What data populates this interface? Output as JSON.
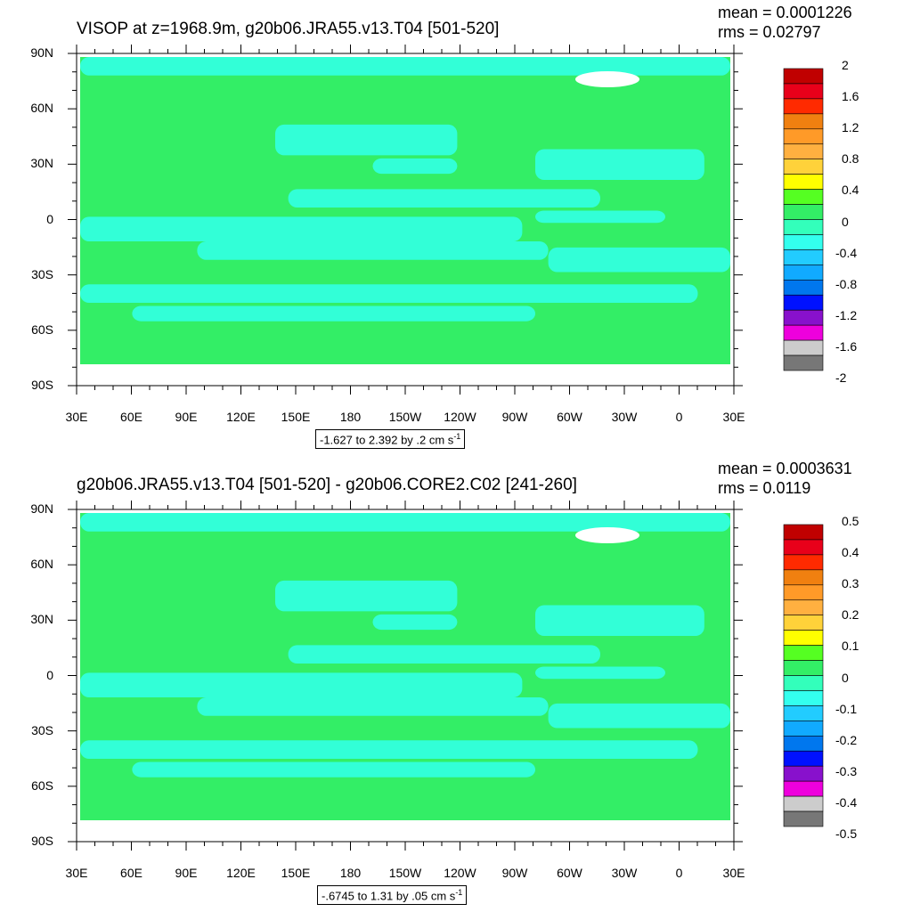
{
  "panels": [
    {
      "title": "VISOP at z=1968.9m, g20b06.JRA55.v13.T04 [501-520]",
      "mean_text": "mean = 0.0001226",
      "rms_text": "rms = 0.02797",
      "info_text": "-1.627 to 2.392 by .2 cm s",
      "info_sup": "-1"
    },
    {
      "title": "g20b06.JRA55.v13.T04 [501-520] - g20b06.CORE2.C02 [241-260]",
      "mean_text": "mean = 0.0003631",
      "rms_text": "rms = 0.0119",
      "info_text": "-.6745 to 1.31 by .05 cm s",
      "info_sup": "-1"
    }
  ],
  "colors": {
    "ocean_zero": "#33ee66",
    "ocean_neg": "#33ffdd",
    "land": "#ffffff",
    "frame": "#000000"
  },
  "chart_data": [
    {
      "type": "heatmap",
      "title": "VISOP at z=1968.9m, g20b06.JRA55.v13.T04 [501-520]",
      "x_ticks": [
        "30E",
        "60E",
        "90E",
        "120E",
        "150E",
        "180",
        "150W",
        "120W",
        "90W",
        "60W",
        "30W",
        "0",
        "30E"
      ],
      "y_ticks": [
        "90N",
        "60N",
        "30N",
        "0",
        "30S",
        "60S",
        "90S"
      ],
      "xlim": [
        30,
        390
      ],
      "ylim": [
        -90,
        90
      ],
      "contour_range": "-1.627 to 2.392 by .2 cm s-1",
      "mean": 0.0001226,
      "rms": 0.02797,
      "colorbar": {
        "labels": [
          "2",
          "1.6",
          "1.2",
          "0.8",
          "0.4",
          "0",
          "-0.4",
          "-0.8",
          "-1.2",
          "-1.6",
          "-2"
        ],
        "colors": [
          "#c00000",
          "#e8001a",
          "#ff2a00",
          "#f08010",
          "#ff9a28",
          "#ffb040",
          "#ffd23a",
          "#ffff00",
          "#55ff22",
          "#33ee66",
          "#33ffbb",
          "#33ffee",
          "#22ccff",
          "#11aaff",
          "#0077ee",
          "#0011ff",
          "#8811cc",
          "#ee00dd",
          "#cccccc",
          "#777777"
        ]
      }
    },
    {
      "type": "heatmap",
      "title": "g20b06.JRA55.v13.T04 [501-520] - g20b06.CORE2.C02 [241-260]",
      "x_ticks": [
        "30E",
        "60E",
        "90E",
        "120E",
        "150E",
        "180",
        "150W",
        "120W",
        "90W",
        "60W",
        "30W",
        "0",
        "30E"
      ],
      "y_ticks": [
        "90N",
        "60N",
        "30N",
        "0",
        "30S",
        "60S",
        "90S"
      ],
      "xlim": [
        30,
        390
      ],
      "ylim": [
        -90,
        90
      ],
      "contour_range": "-.6745 to 1.31 by .05 cm s-1",
      "mean": 0.0003631,
      "rms": 0.0119,
      "colorbar": {
        "labels": [
          "0.5",
          "0.4",
          "0.3",
          "0.2",
          "0.1",
          "0",
          "-0.1",
          "-0.2",
          "-0.3",
          "-0.4",
          "-0.5"
        ],
        "colors": [
          "#c00000",
          "#e8001a",
          "#ff2a00",
          "#f08010",
          "#ff9a28",
          "#ffb040",
          "#ffd23a",
          "#ffff00",
          "#55ff22",
          "#33ee66",
          "#33ffbb",
          "#33ffee",
          "#22ccff",
          "#11aaff",
          "#0077ee",
          "#0011ff",
          "#8811cc",
          "#ee00dd",
          "#cccccc",
          "#777777"
        ]
      }
    }
  ]
}
